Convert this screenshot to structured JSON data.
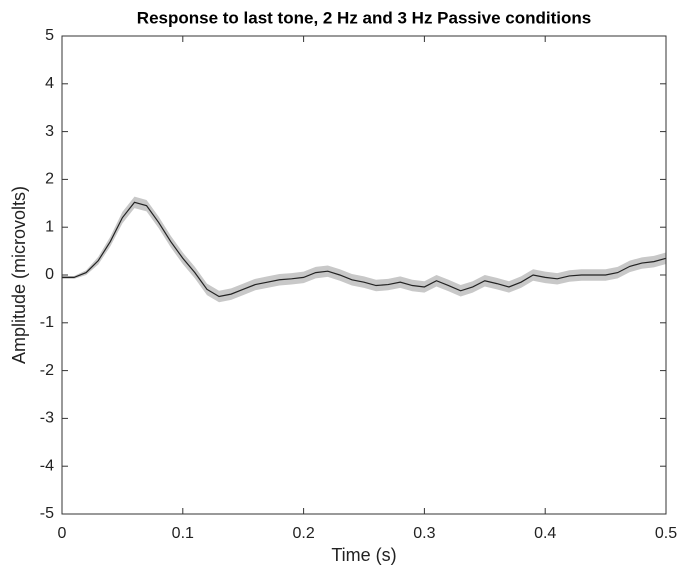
{
  "chart_data": {
    "type": "line",
    "title": "Response to last tone, 2 Hz and 3 Hz Passive conditions",
    "x_label": "Time (s)",
    "y_label": "Amplitude (microvolts)",
    "x": [
      0,
      0.01,
      0.02,
      0.03,
      0.04,
      0.05,
      0.06,
      0.07,
      0.08,
      0.09,
      0.1,
      0.11,
      0.12,
      0.13,
      0.14,
      0.15,
      0.16,
      0.17,
      0.18,
      0.19,
      0.2,
      0.21,
      0.22,
      0.23,
      0.24,
      0.25,
      0.26,
      0.27,
      0.28,
      0.29,
      0.3,
      0.31,
      0.32,
      0.33,
      0.34,
      0.35,
      0.36,
      0.37,
      0.38,
      0.39,
      0.4,
      0.41,
      0.42,
      0.43,
      0.44,
      0.45,
      0.46,
      0.47,
      0.48,
      0.49,
      0.5
    ],
    "values": [
      -0.05,
      -0.05,
      0.05,
      0.3,
      0.7,
      1.2,
      1.52,
      1.45,
      1.1,
      0.7,
      0.35,
      0.05,
      -0.3,
      -0.45,
      -0.4,
      -0.3,
      -0.2,
      -0.15,
      -0.1,
      -0.08,
      -0.05,
      0.05,
      0.08,
      0,
      -0.1,
      -0.15,
      -0.22,
      -0.2,
      -0.15,
      -0.22,
      -0.25,
      -0.12,
      -0.22,
      -0.33,
      -0.25,
      -0.12,
      -0.18,
      -0.25,
      -0.15,
      0,
      -0.05,
      -0.08,
      -0.02,
      0,
      0,
      0,
      0.05,
      0.18,
      0.25,
      0.28,
      0.35
    ],
    "upper": [
      -0.02,
      -0.02,
      0.1,
      0.38,
      0.8,
      1.32,
      1.64,
      1.57,
      1.22,
      0.82,
      0.47,
      0.17,
      -0.18,
      -0.33,
      -0.28,
      -0.18,
      -0.08,
      -0.03,
      0.02,
      0.04,
      0.07,
      0.17,
      0.2,
      0.12,
      0.02,
      -0.03,
      -0.1,
      -0.08,
      -0.03,
      -0.1,
      -0.13,
      0,
      -0.1,
      -0.21,
      -0.13,
      0,
      -0.06,
      -0.13,
      -0.03,
      0.12,
      0.07,
      0.04,
      0.1,
      0.12,
      0.12,
      0.12,
      0.17,
      0.3,
      0.37,
      0.4,
      0.47
    ],
    "lower": [
      -0.08,
      -0.08,
      0,
      0.22,
      0.6,
      1.08,
      1.4,
      1.33,
      0.98,
      0.58,
      0.23,
      -0.07,
      -0.42,
      -0.57,
      -0.52,
      -0.42,
      -0.32,
      -0.27,
      -0.22,
      -0.2,
      -0.17,
      -0.07,
      -0.04,
      -0.12,
      -0.22,
      -0.27,
      -0.34,
      -0.32,
      -0.27,
      -0.34,
      -0.37,
      -0.24,
      -0.34,
      -0.45,
      -0.37,
      -0.24,
      -0.3,
      -0.37,
      -0.27,
      -0.12,
      -0.17,
      -0.2,
      -0.14,
      -0.12,
      -0.12,
      -0.12,
      -0.07,
      0.06,
      0.13,
      0.16,
      0.23
    ],
    "color": "#222222",
    "band_color": "#c8c8c8",
    "xlim": [
      0,
      0.5
    ],
    "xticks": [
      0,
      0.1,
      0.2,
      0.3,
      0.4,
      0.5
    ],
    "ylim": [
      -5,
      5
    ],
    "yticks": [
      -5,
      -4,
      -3,
      -2,
      -1,
      0,
      1,
      2,
      3,
      4,
      5
    ]
  }
}
